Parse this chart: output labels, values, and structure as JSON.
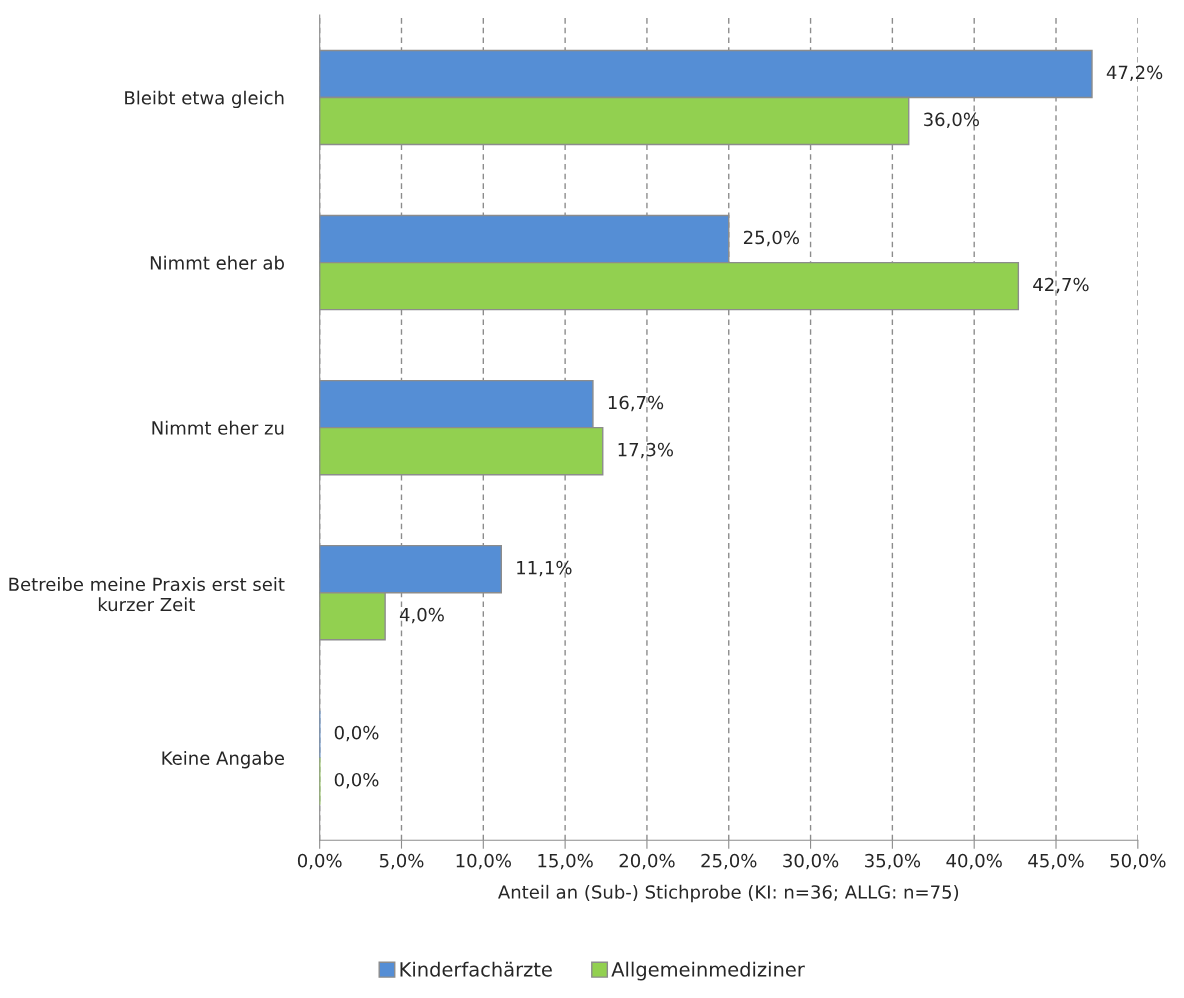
{
  "chart_data": {
    "type": "bar",
    "orientation": "horizontal",
    "categories": [
      "Bleibt etwa gleich",
      "Nimmt eher ab",
      "Nimmt eher zu",
      "Betreibe meine Praxis erst seit kurzer Zeit",
      "Keine Angabe"
    ],
    "series": [
      {
        "name": "Kinderfachärzte",
        "color": "#558ed5",
        "values": [
          47.2,
          25.0,
          16.7,
          11.1,
          0.0
        ],
        "value_labels": [
          "47,2%",
          "25,0%",
          "16,7%",
          "11,1%",
          "0,0%"
        ]
      },
      {
        "name": "Allgemeinmediziner",
        "color": "#92d050",
        "values": [
          36.0,
          42.7,
          17.3,
          4.0,
          0.0
        ],
        "value_labels": [
          "36,0%",
          "42,7%",
          "17,3%",
          "4,0%",
          "0,0%"
        ]
      }
    ],
    "xlabel": "Anteil an (Sub-) Stichprobe (KI: n=36; ALLG: n=75)",
    "xlim": [
      0,
      50
    ],
    "xticks": [
      {
        "value": 0,
        "label": "0,0%"
      },
      {
        "value": 5,
        "label": "5,0%"
      },
      {
        "value": 10,
        "label": "10,0%"
      },
      {
        "value": 15,
        "label": "15,0%"
      },
      {
        "value": 20,
        "label": "20,0%"
      },
      {
        "value": 25,
        "label": "25,0%"
      },
      {
        "value": 30,
        "label": "30,0%"
      },
      {
        "value": 35,
        "label": "35,0%"
      },
      {
        "value": 40,
        "label": "40,0%"
      },
      {
        "value": 45,
        "label": "45,0%"
      },
      {
        "value": 50,
        "label": "50,0%"
      }
    ],
    "grid": "x",
    "legend": "bottom"
  }
}
